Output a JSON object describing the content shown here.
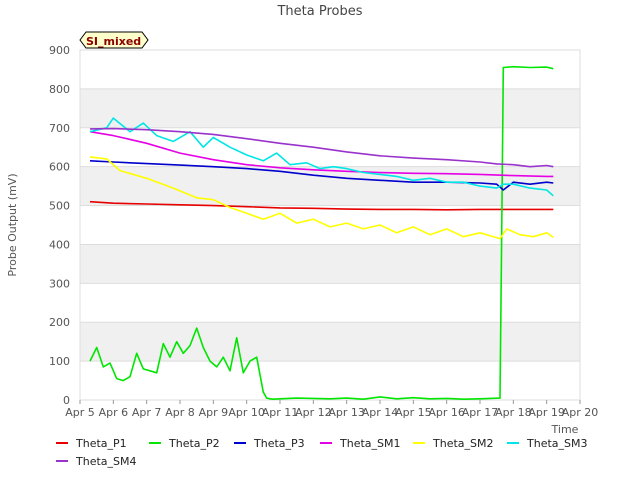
{
  "chart_data": {
    "type": "line",
    "title": "Theta Probes",
    "badge": "SI_mixed",
    "xlabel": "Time",
    "ylabel": "Probe Output (mV)",
    "ylim": [
      0,
      900
    ],
    "xlim": [
      0,
      15
    ],
    "x_ticks": [
      "Apr 5",
      "Apr 6",
      "Apr 7",
      "Apr 8",
      "Apr 9",
      "Apr 10",
      "Apr 11",
      "Apr 12",
      "Apr 13",
      "Apr 14",
      "Apr 15",
      "Apr 16",
      "Apr 17",
      "Apr 18",
      "Apr 19",
      "Apr 20"
    ],
    "y_ticks": [
      0,
      100,
      200,
      300,
      400,
      500,
      600,
      700,
      800,
      900
    ],
    "grid": true,
    "legend_position": "bottom",
    "series": [
      {
        "name": "Theta_P1",
        "color": "#e60000",
        "x": [
          0.3,
          1,
          2,
          3,
          4,
          5,
          6,
          7,
          8,
          9,
          10,
          11,
          12,
          13,
          14,
          14.2
        ],
        "y": [
          510,
          506,
          504,
          502,
          500,
          497,
          494,
          493,
          491,
          490,
          490,
          489,
          490,
          490,
          490,
          490
        ]
      },
      {
        "name": "Theta_P2",
        "color": "#00e600",
        "x": [
          0.3,
          0.5,
          0.7,
          0.9,
          1.1,
          1.3,
          1.5,
          1.7,
          1.9,
          2.1,
          2.3,
          2.5,
          2.7,
          2.9,
          3.1,
          3.3,
          3.5,
          3.7,
          3.9,
          4.1,
          4.3,
          4.5,
          4.7,
          4.9,
          5.1,
          5.3,
          5.5,
          5.6,
          5.7,
          5.8,
          6,
          6.5,
          7,
          7.5,
          8,
          8.5,
          9,
          9.5,
          10,
          10.5,
          11,
          11.5,
          12,
          12.6,
          12.65,
          12.7,
          13,
          13.5,
          14,
          14.2
        ],
        "y": [
          100,
          135,
          85,
          95,
          55,
          50,
          60,
          120,
          80,
          75,
          70,
          145,
          110,
          150,
          120,
          140,
          185,
          135,
          100,
          85,
          110,
          75,
          160,
          70,
          100,
          110,
          20,
          5,
          3,
          2,
          3,
          5,
          4,
          3,
          5,
          2,
          8,
          3,
          6,
          3,
          4,
          2,
          3,
          5,
          430,
          855,
          857,
          855,
          856,
          852
        ]
      },
      {
        "name": "Theta_P3",
        "color": "#0000cc",
        "x": [
          0.3,
          1,
          2,
          3,
          4,
          5,
          6,
          7,
          8,
          9,
          10,
          11,
          12,
          12.5,
          12.7,
          13,
          13.5,
          14,
          14.2
        ],
        "y": [
          615,
          612,
          608,
          604,
          600,
          595,
          588,
          578,
          570,
          565,
          560,
          560,
          558,
          555,
          540,
          560,
          555,
          560,
          558
        ]
      },
      {
        "name": "Theta_SM1",
        "color": "#e600e6",
        "x": [
          0.3,
          1,
          2,
          3,
          4,
          5,
          6,
          7,
          8,
          9,
          10,
          11,
          12,
          13,
          14,
          14.2
        ],
        "y": [
          690,
          680,
          660,
          635,
          618,
          605,
          597,
          592,
          588,
          585,
          583,
          582,
          580,
          577,
          575,
          575
        ]
      },
      {
        "name": "Theta_SM2",
        "color": "#ffff00",
        "x": [
          0.3,
          0.8,
          1.2,
          2,
          2.8,
          3.5,
          4,
          4.5,
          5,
          5.5,
          6,
          6.5,
          7,
          7.5,
          8,
          8.5,
          9,
          9.5,
          10,
          10.5,
          11,
          11.5,
          12,
          12.6,
          12.8,
          13.2,
          13.6,
          14,
          14.2
        ],
        "y": [
          625,
          620,
          590,
          570,
          545,
          520,
          515,
          495,
          480,
          465,
          480,
          455,
          465,
          445,
          455,
          440,
          450,
          430,
          445,
          425,
          440,
          420,
          430,
          415,
          440,
          425,
          420,
          430,
          418
        ]
      },
      {
        "name": "Theta_SM3",
        "color": "#00e6e6",
        "x": [
          0.3,
          0.8,
          1,
          1.5,
          1.9,
          2.3,
          2.8,
          3.3,
          3.7,
          4,
          4.5,
          5,
          5.5,
          5.9,
          6.3,
          6.8,
          7.2,
          7.6,
          8,
          8.5,
          9,
          9.5,
          10,
          10.5,
          11,
          11.5,
          12,
          12.5,
          12.7,
          13,
          13.5,
          14,
          14.2
        ],
        "y": [
          690,
          700,
          725,
          690,
          712,
          680,
          665,
          690,
          650,
          675,
          650,
          630,
          615,
          635,
          605,
          610,
          595,
          600,
          595,
          585,
          580,
          575,
          565,
          570,
          560,
          560,
          550,
          545,
          555,
          555,
          545,
          540,
          525
        ]
      },
      {
        "name": "Theta_SM4",
        "color": "#9933cc",
        "x": [
          0.3,
          1,
          2,
          3,
          4,
          5,
          6,
          7,
          8,
          9,
          10,
          11,
          12,
          12.5,
          13,
          13.5,
          14,
          14.2
        ],
        "y": [
          697,
          698,
          695,
          690,
          683,
          672,
          660,
          650,
          638,
          628,
          622,
          618,
          612,
          607,
          605,
          600,
          603,
          600
        ]
      }
    ]
  }
}
